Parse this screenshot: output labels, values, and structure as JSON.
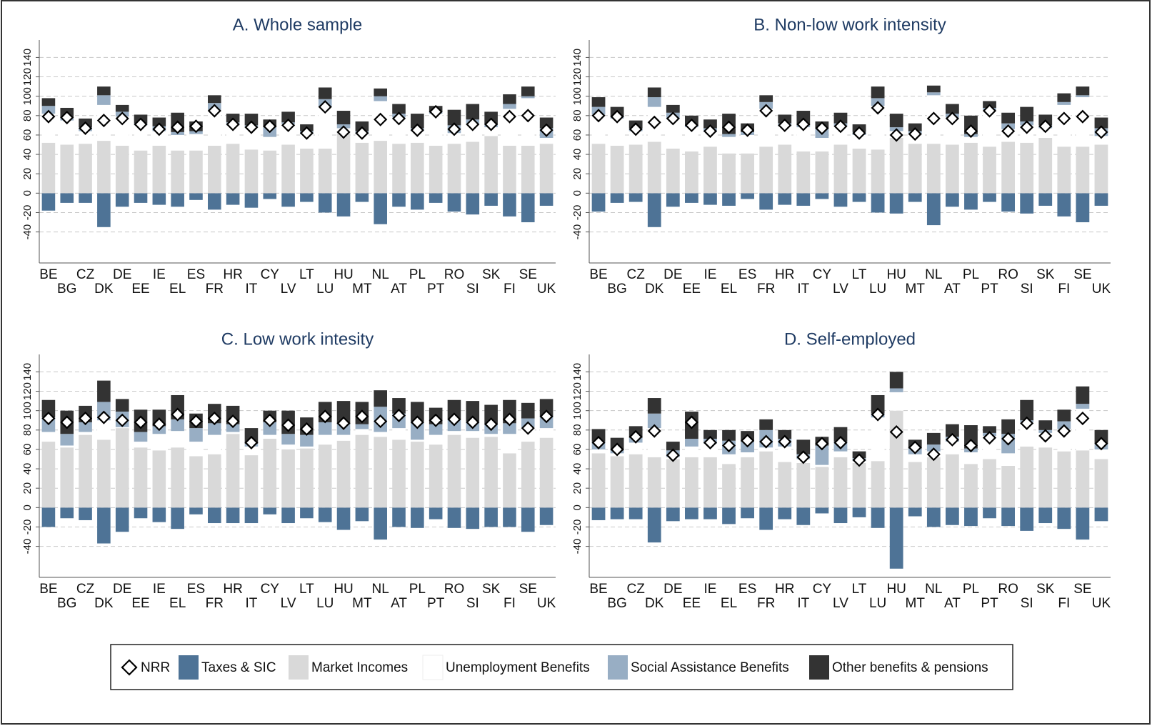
{
  "chart_data": [
    {
      "type": "bar",
      "title": "A. Whole sample",
      "categories": [
        "BE",
        "BG",
        "CZ",
        "DK",
        "DE",
        "EE",
        "IE",
        "EL",
        "ES",
        "FR",
        "HR",
        "IT",
        "CY",
        "LV",
        "LT",
        "LU",
        "HU",
        "MT",
        "NL",
        "AT",
        "PL",
        "PT",
        "RO",
        "SI",
        "SK",
        "FI",
        "SE",
        "UK"
      ],
      "ylim": [
        -72,
        158
      ],
      "yticks": [
        -40,
        -20,
        0,
        20,
        40,
        60,
        80,
        100,
        120,
        140
      ],
      "grid": true,
      "series": [
        {
          "name": "NRR",
          "color": "#ffffff",
          "marker": "diamond",
          "values": [
            79,
            78,
            67,
            75,
            77,
            71,
            66,
            68,
            69,
            85,
            71,
            68,
            69,
            70,
            62,
            89,
            63,
            62,
            76,
            77,
            65,
            84,
            66,
            71,
            71,
            79,
            80,
            65
          ]
        },
        {
          "name": "Taxes & SIC",
          "color": "#4e7396",
          "values": [
            -18,
            -10,
            -10,
            -35,
            -14,
            -10,
            -12,
            -14,
            -7,
            -17,
            -12,
            -15,
            -6,
            -14,
            -9,
            -20,
            -24,
            -9,
            -32,
            -14,
            -17,
            -10,
            -19,
            -22,
            -13,
            -24,
            -30,
            -13
          ]
        },
        {
          "name": "Market Incomes",
          "color": "#d9d9d9",
          "values": [
            52,
            50,
            51,
            54,
            49,
            44,
            49,
            44,
            44,
            49,
            51,
            45,
            44,
            50,
            46,
            46,
            64,
            52,
            54,
            51,
            52,
            49,
            51,
            53,
            59,
            49,
            49,
            51
          ]
        },
        {
          "name": "Unemployment Benefits",
          "color": "#ffffff",
          "values": [
            30,
            25,
            13,
            37,
            30,
            26,
            15,
            16,
            17,
            37,
            19,
            23,
            14,
            21,
            15,
            43,
            3,
            9,
            41,
            27,
            12,
            33,
            11,
            19,
            9,
            38,
            49,
            6
          ]
        },
        {
          "name": "Social Assistance Benefits",
          "color": "#98aec4",
          "values": [
            8,
            3,
            4,
            10,
            5,
            2,
            5,
            3,
            3,
            7,
            3,
            2,
            10,
            2,
            3,
            8,
            4,
            3,
            5,
            4,
            3,
            2,
            8,
            4,
            3,
            5,
            2,
            10
          ]
        },
        {
          "name": "Other benefits & pensions",
          "color": "#333333",
          "values": [
            8,
            10,
            9,
            9,
            7,
            9,
            9,
            20,
            10,
            8,
            9,
            12,
            8,
            11,
            7,
            12,
            14,
            10,
            8,
            10,
            15,
            6,
            16,
            16,
            13,
            10,
            10,
            11
          ]
        }
      ]
    },
    {
      "type": "bar",
      "title": "B. Non-low work intensity",
      "categories": [
        "BE",
        "BG",
        "CZ",
        "DK",
        "DE",
        "EE",
        "IE",
        "EL",
        "ES",
        "FR",
        "HR",
        "IT",
        "CY",
        "LV",
        "LT",
        "LU",
        "HU",
        "MT",
        "NL",
        "AT",
        "PL",
        "PT",
        "RO",
        "SI",
        "SK",
        "FI",
        "SE",
        "UK"
      ],
      "ylim": [
        -72,
        158
      ],
      "yticks": [
        -40,
        -20,
        0,
        20,
        40,
        60,
        80,
        100,
        120,
        140
      ],
      "grid": true,
      "series": [
        {
          "name": "NRR",
          "color": "#ffffff",
          "marker": "diamond",
          "values": [
            80,
            79,
            66,
            73,
            77,
            70,
            64,
            68,
            65,
            85,
            70,
            71,
            67,
            69,
            62,
            88,
            60,
            61,
            77,
            77,
            64,
            85,
            64,
            68,
            69,
            77,
            79,
            63
          ]
        },
        {
          "name": "Taxes & SIC",
          "color": "#4e7396",
          "values": [
            -19,
            -10,
            -9,
            -35,
            -14,
            -10,
            -12,
            -13,
            -6,
            -17,
            -12,
            -13,
            -6,
            -14,
            -9,
            -20,
            -21,
            -9,
            -33,
            -14,
            -17,
            -9,
            -19,
            -21,
            -13,
            -24,
            -30,
            -13
          ]
        },
        {
          "name": "Market Incomes",
          "color": "#d9d9d9",
          "values": [
            51,
            49,
            50,
            53,
            46,
            43,
            48,
            41,
            41,
            48,
            50,
            43,
            43,
            50,
            46,
            45,
            57,
            51,
            51,
            50,
            52,
            48,
            53,
            52,
            57,
            48,
            48,
            50
          ]
        },
        {
          "name": "Unemployment Benefits",
          "color": "#ffffff",
          "values": [
            30,
            28,
            14,
            36,
            31,
            25,
            15,
            17,
            19,
            39,
            19,
            25,
            14,
            19,
            14,
            45,
            7,
            10,
            50,
            28,
            6,
            38,
            13,
            18,
            10,
            43,
            51,
            9
          ]
        },
        {
          "name": "Social Assistance Benefits",
          "color": "#98aec4",
          "values": [
            8,
            2,
            3,
            10,
            6,
            2,
            4,
            3,
            3,
            7,
            3,
            2,
            10,
            3,
            3,
            8,
            4,
            3,
            3,
            4,
            3,
            2,
            6,
            4,
            3,
            3,
            2,
            8
          ]
        },
        {
          "name": "Other benefits & pensions",
          "color": "#333333",
          "values": [
            10,
            10,
            8,
            10,
            8,
            10,
            9,
            21,
            9,
            7,
            9,
            15,
            7,
            11,
            8,
            12,
            14,
            8,
            7,
            10,
            19,
            7,
            11,
            15,
            11,
            9,
            9,
            11
          ]
        }
      ]
    },
    {
      "type": "bar",
      "title": "C. Low work intesity",
      "categories": [
        "BE",
        "BG",
        "CZ",
        "DK",
        "DE",
        "EE",
        "IE",
        "EL",
        "ES",
        "FR",
        "HR",
        "IT",
        "CY",
        "LV",
        "LT",
        "LU",
        "HU",
        "MT",
        "NL",
        "AT",
        "PL",
        "PT",
        "RO",
        "SI",
        "SK",
        "FI",
        "SE",
        "UK"
      ],
      "ylim": [
        -72,
        158
      ],
      "yticks": [
        -40,
        -20,
        0,
        20,
        40,
        60,
        80,
        100,
        120,
        140
      ],
      "grid": true,
      "series": [
        {
          "name": "NRR",
          "color": "#ffffff",
          "marker": "diamond",
          "values": [
            92,
            88,
            92,
            93,
            90,
            88,
            86,
            96,
            89,
            92,
            89,
            67,
            90,
            85,
            81,
            94,
            87,
            94,
            89,
            95,
            88,
            90,
            91,
            88,
            86,
            91,
            82,
            94
          ]
        },
        {
          "name": "Taxes & SIC",
          "color": "#4e7396",
          "values": [
            -20,
            -11,
            -13,
            -37,
            -25,
            -11,
            -15,
            -22,
            -7,
            -16,
            -16,
            -16,
            -7,
            -16,
            -11,
            -15,
            -23,
            -14,
            -33,
            -20,
            -21,
            -12,
            -21,
            -22,
            -20,
            -20,
            -25,
            -18
          ]
        },
        {
          "name": "Market Incomes",
          "color": "#d9d9d9",
          "values": [
            68,
            62,
            75,
            70,
            82,
            62,
            59,
            62,
            53,
            55,
            76,
            54,
            71,
            60,
            61,
            65,
            69,
            75,
            73,
            70,
            68,
            65,
            75,
            72,
            73,
            56,
            68,
            72
          ]
        },
        {
          "name": "Unemployment Benefits",
          "color": "#ffffff",
          "values": [
            10,
            2,
            3,
            20,
            1,
            6,
            17,
            17,
            15,
            20,
            2,
            9,
            4,
            5,
            2,
            10,
            6,
            6,
            5,
            12,
            2,
            10,
            4,
            7,
            3,
            20,
            15,
            10
          ]
        },
        {
          "name": "Social Assistance Benefits",
          "color": "#98aec4",
          "values": [
            15,
            12,
            10,
            19,
            16,
            10,
            8,
            12,
            14,
            12,
            8,
            3,
            13,
            11,
            12,
            13,
            11,
            5,
            26,
            15,
            19,
            11,
            12,
            10,
            10,
            11,
            9,
            12
          ]
        },
        {
          "name": "Other benefits & pensions",
          "color": "#333333",
          "values": [
            18,
            24,
            17,
            22,
            13,
            23,
            17,
            25,
            15,
            20,
            19,
            16,
            12,
            24,
            18,
            21,
            24,
            23,
            17,
            16,
            20,
            17,
            20,
            21,
            20,
            24,
            16,
            18
          ]
        }
      ]
    },
    {
      "type": "bar",
      "title": "D. Self-employed",
      "categories": [
        "BE",
        "BG",
        "CZ",
        "DK",
        "DE",
        "EE",
        "IE",
        "EL",
        "ES",
        "FR",
        "HR",
        "IT",
        "CY",
        "LV",
        "LT",
        "LU",
        "HU",
        "MT",
        "NL",
        "AT",
        "PL",
        "PT",
        "RO",
        "SI",
        "SK",
        "FI",
        "SE",
        "UK"
      ],
      "ylim": [
        -72,
        158
      ],
      "yticks": [
        -40,
        -20,
        0,
        20,
        40,
        60,
        80,
        100,
        120,
        140
      ],
      "grid": true,
      "series": [
        {
          "name": "NRR",
          "color": "#ffffff",
          "marker": "diamond",
          "values": [
            67,
            60,
            73,
            79,
            54,
            88,
            67,
            64,
            69,
            68,
            68,
            52,
            66,
            67,
            49,
            96,
            78,
            62,
            55,
            70,
            64,
            72,
            71,
            87,
            74,
            79,
            92,
            66
          ]
        },
        {
          "name": "Taxes & SIC",
          "color": "#4e7396",
          "values": [
            -13,
            -12,
            -12,
            -36,
            -14,
            -12,
            -12,
            -17,
            -11,
            -23,
            -12,
            -18,
            -6,
            -16,
            -10,
            -21,
            -63,
            -9,
            -20,
            -18,
            -19,
            -11,
            -19,
            -24,
            -16,
            -22,
            -33,
            -14
          ]
        },
        {
          "name": "Market Incomes",
          "color": "#d9d9d9",
          "values": [
            56,
            53,
            55,
            52,
            50,
            52,
            52,
            45,
            52,
            58,
            47,
            46,
            42,
            52,
            46,
            48,
            100,
            47,
            52,
            55,
            45,
            50,
            43,
            63,
            62,
            58,
            59,
            50
          ]
        },
        {
          "name": "Unemployment Benefits",
          "color": "#ffffff",
          "values": [
            4,
            3,
            12,
            30,
            2,
            11,
            14,
            10,
            5,
            4,
            16,
            4,
            2,
            6,
            2,
            45,
            19,
            8,
            6,
            13,
            12,
            24,
            13,
            25,
            15,
            23,
            43,
            10
          ]
        },
        {
          "name": "Social Assistance Benefits",
          "color": "#98aec4",
          "values": [
            8,
            3,
            5,
            15,
            7,
            8,
            5,
            14,
            11,
            18,
            8,
            5,
            20,
            10,
            3,
            4,
            4,
            6,
            7,
            5,
            4,
            3,
            20,
            2,
            3,
            8,
            5,
            6
          ]
        },
        {
          "name": "Other benefits & pensions",
          "color": "#333333",
          "values": [
            13,
            13,
            12,
            16,
            9,
            28,
            9,
            11,
            11,
            11,
            9,
            15,
            9,
            15,
            7,
            19,
            17,
            9,
            12,
            13,
            24,
            7,
            15,
            21,
            10,
            12,
            18,
            14
          ]
        }
      ]
    }
  ]
}
